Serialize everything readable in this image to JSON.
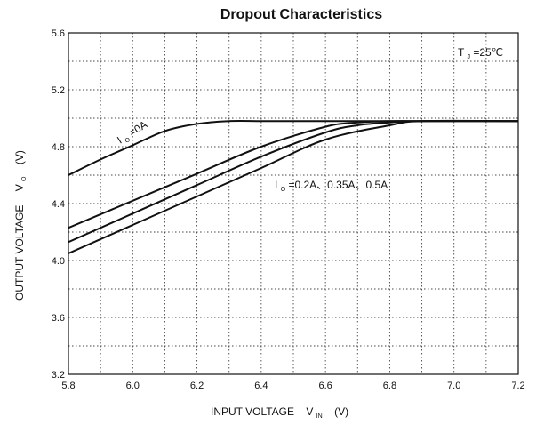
{
  "chart_data": {
    "type": "line",
    "title": "Dropout Characteristics",
    "xlabel": {
      "main": "INPUT VOLTAGE",
      "symbol": "V",
      "sub": "IN",
      "unit": "(V)"
    },
    "ylabel": {
      "main": "OUTPUT VOLTAGE",
      "symbol": "V",
      "sub": "O",
      "unit": "(V)"
    },
    "xlim": [
      5.8,
      7.2
    ],
    "ylim": [
      3.2,
      5.6
    ],
    "x_major_ticks": [
      5.8,
      6.0,
      6.2,
      6.4,
      6.6,
      6.8,
      7.0,
      7.2
    ],
    "y_major_ticks": [
      3.2,
      3.6,
      4.0,
      4.4,
      4.8,
      5.2,
      5.6
    ],
    "x_tick_labels": [
      "5.8",
      "6.0",
      "6.2",
      "6.4",
      "6.6",
      "6.8",
      "7.0",
      "7.2"
    ],
    "y_tick_labels": [
      "3.2",
      "3.6",
      "4.0",
      "4.4",
      "4.8",
      "5.2",
      "5.6"
    ],
    "grid": true,
    "series": [
      {
        "x": [
          5.8,
          5.9,
          6.0,
          6.1,
          6.2,
          6.3,
          6.4,
          6.5,
          7.2
        ],
        "y": [
          4.6,
          4.71,
          4.81,
          4.91,
          4.96,
          4.98,
          4.98,
          4.98,
          4.98
        ]
      },
      {
        "x": [
          5.8,
          6.0,
          6.2,
          6.4,
          6.6,
          6.7,
          6.8,
          6.9,
          7.2
        ],
        "y": [
          4.23,
          4.42,
          4.61,
          4.8,
          4.94,
          4.97,
          4.98,
          4.98,
          4.98
        ]
      },
      {
        "x": [
          5.8,
          6.0,
          6.2,
          6.4,
          6.6,
          6.7,
          6.8,
          6.9,
          7.2
        ],
        "y": [
          4.13,
          4.33,
          4.53,
          4.73,
          4.9,
          4.95,
          4.97,
          4.98,
          4.98
        ]
      },
      {
        "x": [
          5.8,
          6.0,
          6.2,
          6.4,
          6.6,
          6.8,
          6.9,
          7.2
        ],
        "y": [
          4.05,
          4.25,
          4.45,
          4.65,
          4.85,
          4.95,
          4.98,
          4.98
        ]
      }
    ],
    "annotations": {
      "series0_label": {
        "symbol": "I",
        "sub": "O",
        "value": "=0A"
      },
      "series_rest_label": {
        "symbol": "I",
        "sub": "O",
        "value": "=0.2A、0.35A、0.5A"
      },
      "temp_label": {
        "symbol": "T",
        "sub": "J",
        "value": "=25℃"
      }
    }
  }
}
